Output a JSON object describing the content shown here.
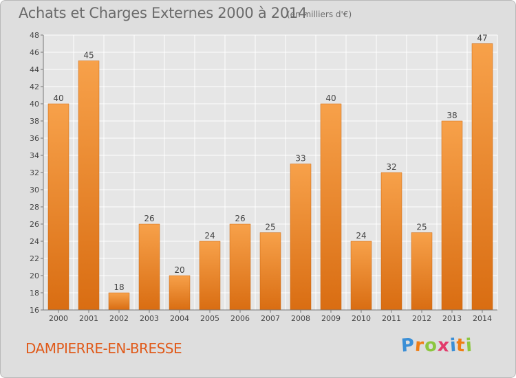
{
  "header": {
    "title": "Achats et Charges Externes 2000 à 2014",
    "unit": "(en milliers d'€)"
  },
  "footer": {
    "place": "DAMPIERRE-EN-BRESSE",
    "logo": {
      "text": "Proxiti",
      "letters": [
        {
          "char": "P",
          "color": "#3b8fd6"
        },
        {
          "char": "r",
          "color": "#ef7d14"
        },
        {
          "char": "o",
          "color": "#8cc63f"
        },
        {
          "char": "x",
          "color": "#e23b6b"
        },
        {
          "char": "i",
          "color": "#3b8fd6"
        },
        {
          "char": "t",
          "color": "#ef7d14"
        },
        {
          "char": "i",
          "color": "#8cc63f"
        }
      ]
    }
  },
  "colors": {
    "bar_light": "#f7a14a",
    "bar_dark": "#d96d12",
    "grid": "#ffffff",
    "text": "#444444",
    "place": "#e05a1a"
  },
  "chart_data": {
    "type": "bar",
    "title": "Achats et Charges Externes 2000 à 2014",
    "subtitle": "(en milliers d'€)",
    "categories": [
      "2000",
      "2001",
      "2002",
      "2003",
      "2004",
      "2005",
      "2006",
      "2007",
      "2008",
      "2009",
      "2010",
      "2011",
      "2012",
      "2013",
      "2014"
    ],
    "values": [
      40,
      45,
      18,
      26,
      20,
      24,
      26,
      25,
      33,
      40,
      24,
      32,
      25,
      38,
      47
    ],
    "ylim": [
      16,
      48
    ],
    "yticks": [
      16,
      18,
      20,
      22,
      24,
      26,
      28,
      30,
      32,
      34,
      36,
      38,
      40,
      42,
      44,
      46,
      48
    ],
    "grid": true,
    "data_labels": true
  }
}
